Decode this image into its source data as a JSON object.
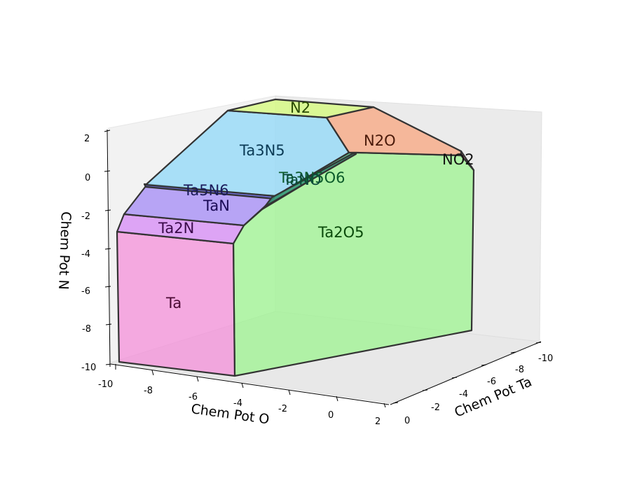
{
  "chart_data": {
    "type": "3d-polyhedron",
    "title": "",
    "axes": {
      "x": {
        "label": "Chem Pot O",
        "ticks": [
          "-10",
          "-8",
          "-6",
          "-4",
          "-2",
          "0",
          "2"
        ],
        "range": [
          -10,
          2
        ]
      },
      "y": {
        "label": "Chem Pot Ta",
        "ticks": [
          "0",
          "-2",
          "-4",
          "-6",
          "-8",
          "-10"
        ],
        "range": [
          0,
          -10
        ]
      },
      "z": {
        "label": "Chem Pot N",
        "ticks": [
          "2",
          "0",
          "-2",
          "-4",
          "-6",
          "-8",
          "-10"
        ],
        "range": [
          -10,
          2
        ]
      }
    },
    "regions": [
      {
        "name": "N2",
        "color": "#d6fa7f"
      },
      {
        "name": "Ta3N5",
        "color": "#8fd8f8"
      },
      {
        "name": "N2O",
        "color": "#f8a57f"
      },
      {
        "name": "NO2",
        "color": "#f07a8a"
      },
      {
        "name": "Ta3N5O6",
        "label": "Ta3N5O6",
        "color": "#46b87a"
      },
      {
        "name": "TaNO",
        "color": "#3f9a7e"
      },
      {
        "name": "Ta5N6",
        "color": "#6a6ad8"
      },
      {
        "name": "TaN",
        "color": "#a38af5"
      },
      {
        "name": "Ta2N",
        "color": "#d68af5"
      },
      {
        "name": "Ta",
        "color": "#f58ad8"
      },
      {
        "name": "Ta2O5",
        "color": "#98f58a"
      }
    ],
    "grid": false,
    "legend": "none"
  }
}
